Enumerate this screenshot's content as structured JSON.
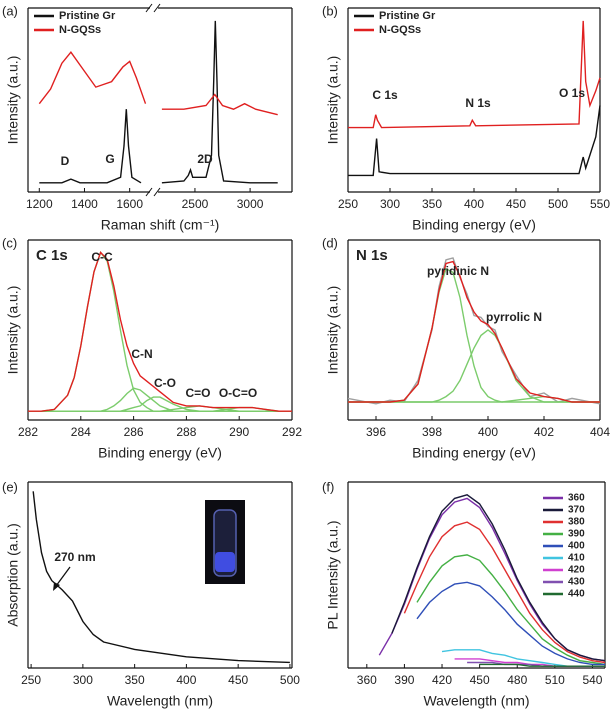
{
  "chart_data": [
    {
      "type": "line",
      "label": "(a)",
      "xlabel": "Raman shift (cm⁻¹)",
      "ylabel": "Intensity (a.u.)",
      "broken_axis": true,
      "xlim": [
        [
          1150,
          1690
        ],
        [
          2165,
          3380
        ]
      ],
      "xticks": [
        1200,
        1400,
        1600,
        2500,
        3000
      ],
      "ylim": [
        0,
        1
      ],
      "legend": "upper left",
      "annotations": [
        "D",
        "G",
        "2D"
      ],
      "series": [
        {
          "name": "Pristine Gr",
          "color": "#111111",
          "x": [
            1200,
            1300,
            1340,
            1380,
            1500,
            1560,
            1575,
            1585,
            1595,
            1610,
            1650,
            null,
            2200,
            2400,
            2440,
            2460,
            2480,
            2600,
            2650,
            2670,
            2685,
            2700,
            2715,
            2760,
            3000,
            3250
          ],
          "values": [
            0.05,
            0.05,
            0.07,
            0.05,
            0.05,
            0.08,
            0.25,
            0.45,
            0.25,
            0.08,
            0.05,
            null,
            0.05,
            0.06,
            0.09,
            0.12,
            0.08,
            0.08,
            0.2,
            0.6,
            0.93,
            0.6,
            0.2,
            0.06,
            0.05,
            0.05
          ]
        },
        {
          "name": "N-GQSs",
          "color": "#e02020",
          "x": [
            1200,
            1250,
            1300,
            1340,
            1380,
            1450,
            1520,
            1570,
            1600,
            1630,
            1670,
            null,
            2200,
            2400,
            2600,
            2680,
            2750,
            2850,
            2950,
            3050,
            3250
          ],
          "values": [
            0.48,
            0.56,
            0.7,
            0.76,
            0.69,
            0.57,
            0.6,
            0.68,
            0.71,
            0.62,
            0.48,
            null,
            0.45,
            0.45,
            0.47,
            0.53,
            0.47,
            0.45,
            0.48,
            0.45,
            0.42
          ]
        }
      ]
    },
    {
      "type": "line",
      "label": "(b)",
      "xlabel": "Binding energy (eV)",
      "ylabel": "Intensity (a.u.)",
      "xlim": [
        250,
        550
      ],
      "xticks": [
        250,
        300,
        350,
        400,
        450,
        500,
        550
      ],
      "ylim": [
        0,
        1
      ],
      "legend": "upper left",
      "annotations": [
        "C 1s",
        "N 1s",
        "O 1s"
      ],
      "series": [
        {
          "name": "Pristine Gr",
          "color": "#111111",
          "x": [
            250,
            280,
            284,
            287,
            300,
            525,
            530,
            533,
            545,
            550
          ],
          "values": [
            0.09,
            0.09,
            0.29,
            0.11,
            0.1,
            0.1,
            0.19,
            0.13,
            0.3,
            0.47
          ]
        },
        {
          "name": "N-GQSs",
          "color": "#e02020",
          "x": [
            250,
            280,
            283,
            285,
            290,
            395,
            398,
            402,
            525,
            530,
            533,
            538,
            545,
            550
          ],
          "values": [
            0.35,
            0.35,
            0.42,
            0.39,
            0.35,
            0.36,
            0.39,
            0.36,
            0.37,
            0.93,
            0.6,
            0.47,
            0.55,
            0.62
          ]
        }
      ]
    },
    {
      "type": "line",
      "label": "(c)",
      "title": "C 1s",
      "xlabel": "Binding energy (eV)",
      "ylabel": "Intensity (a.u.)",
      "xlim": [
        282,
        292
      ],
      "xticks": [
        282,
        284,
        286,
        288,
        290,
        292
      ],
      "ylim": [
        0,
        1.02
      ],
      "annotations": [
        "C-C",
        "C-N",
        "C-O",
        "C=O",
        "O-C=O"
      ],
      "x": [
        282,
        282.5,
        283,
        283.5,
        283.75,
        284,
        284.25,
        284.5,
        284.75,
        285,
        285.25,
        285.5,
        285.75,
        286,
        286.25,
        286.5,
        286.75,
        287,
        287.5,
        288,
        288.5,
        289,
        289.5,
        290,
        290.5,
        291,
        291.5,
        292
      ],
      "series": [
        {
          "color": "#7ccc6c",
          "values": [
            0.05,
            0.05,
            0.06,
            0.14,
            0.24,
            0.42,
            0.64,
            0.84,
            0.95,
            0.9,
            0.73,
            0.51,
            0.31,
            0.17,
            0.1,
            0.07,
            0.05,
            0.05,
            0.05,
            0.05,
            0.05,
            0.05,
            0.05,
            0.05,
            0.05,
            0.05,
            0.05,
            0.05
          ]
        },
        {
          "color": "#7ccc6c",
          "values": [
            0.05,
            0.05,
            0.05,
            0.05,
            0.05,
            0.05,
            0.05,
            0.05,
            0.05,
            0.06,
            0.08,
            0.11,
            0.15,
            0.18,
            0.17,
            0.14,
            0.11,
            0.08,
            0.05,
            0.05,
            0.05,
            0.05,
            0.05,
            0.05,
            0.05,
            0.05,
            0.05,
            0.05
          ]
        },
        {
          "color": "#7ccc6c",
          "values": [
            0.05,
            0.05,
            0.05,
            0.05,
            0.05,
            0.05,
            0.05,
            0.05,
            0.05,
            0.05,
            0.05,
            0.05,
            0.06,
            0.07,
            0.08,
            0.11,
            0.13,
            0.13,
            0.09,
            0.06,
            0.05,
            0.05,
            0.05,
            0.05,
            0.05,
            0.05,
            0.05,
            0.05
          ]
        },
        {
          "color": "#7ccc6c",
          "values": [
            0.05,
            0.05,
            0.05,
            0.05,
            0.05,
            0.05,
            0.05,
            0.05,
            0.05,
            0.05,
            0.05,
            0.05,
            0.05,
            0.05,
            0.05,
            0.05,
            0.05,
            0.05,
            0.06,
            0.07,
            0.08,
            0.07,
            0.06,
            0.05,
            0.05,
            0.05,
            0.05,
            0.05
          ]
        },
        {
          "color": "#7ccc6c",
          "values": [
            0.05,
            0.05,
            0.05,
            0.05,
            0.05,
            0.05,
            0.05,
            0.05,
            0.05,
            0.05,
            0.05,
            0.05,
            0.05,
            0.05,
            0.05,
            0.05,
            0.05,
            0.05,
            0.05,
            0.05,
            0.05,
            0.05,
            0.06,
            0.07,
            0.07,
            0.06,
            0.05,
            0.05
          ]
        },
        {
          "color": "#e02020",
          "values": [
            0.05,
            0.05,
            0.06,
            0.14,
            0.24,
            0.42,
            0.64,
            0.84,
            0.95,
            0.91,
            0.76,
            0.57,
            0.42,
            0.32,
            0.25,
            0.22,
            0.19,
            0.16,
            0.1,
            0.08,
            0.08,
            0.07,
            0.07,
            0.07,
            0.07,
            0.06,
            0.05,
            0.05
          ]
        }
      ]
    },
    {
      "type": "line",
      "label": "(d)",
      "title": "N 1s",
      "xlabel": "Binding energy (eV)",
      "ylabel": "Intensity (a.u.)",
      "xlim": [
        395,
        404
      ],
      "xticks": [
        396,
        398,
        400,
        402,
        404
      ],
      "ylim": [
        0,
        1
      ],
      "annotations": [
        "pyridinic N",
        "pyrrolic N"
      ],
      "x": [
        395,
        396,
        396.5,
        397,
        397.5,
        398,
        398.25,
        398.5,
        398.75,
        399,
        399.25,
        399.5,
        399.75,
        400,
        400.25,
        400.5,
        401,
        401.5,
        402,
        402.5,
        403,
        404
      ],
      "series": [
        {
          "color": "#a0a0a0",
          "values": [
            0.12,
            0.09,
            0.11,
            0.1,
            0.22,
            0.5,
            0.74,
            0.89,
            0.9,
            0.79,
            0.7,
            0.58,
            0.57,
            0.52,
            0.5,
            0.38,
            0.25,
            0.13,
            0.15,
            0.1,
            0.12,
            0.09
          ]
        },
        {
          "color": "#7ccc6c",
          "values": [
            0.1,
            0.1,
            0.1,
            0.11,
            0.2,
            0.51,
            0.71,
            0.84,
            0.82,
            0.68,
            0.47,
            0.3,
            0.18,
            0.13,
            0.11,
            0.1,
            0.1,
            0.1,
            0.1,
            0.1,
            0.1,
            0.1
          ]
        },
        {
          "color": "#7ccc6c",
          "values": [
            0.1,
            0.1,
            0.1,
            0.1,
            0.1,
            0.1,
            0.11,
            0.13,
            0.16,
            0.22,
            0.31,
            0.4,
            0.47,
            0.5,
            0.47,
            0.4,
            0.22,
            0.13,
            0.1,
            0.1,
            0.1,
            0.1
          ]
        },
        {
          "color": "#7ccc6c",
          "values": [
            0.1,
            0.1,
            0.1,
            0.1,
            0.1,
            0.1,
            0.1,
            0.1,
            0.1,
            0.1,
            0.1,
            0.1,
            0.1,
            0.1,
            0.1,
            0.1,
            0.11,
            0.12,
            0.13,
            0.12,
            0.1,
            0.1
          ]
        },
        {
          "color": "#e02020",
          "values": [
            0.1,
            0.1,
            0.1,
            0.11,
            0.2,
            0.51,
            0.72,
            0.87,
            0.88,
            0.8,
            0.68,
            0.6,
            0.55,
            0.53,
            0.48,
            0.4,
            0.23,
            0.15,
            0.13,
            0.12,
            0.1,
            0.1
          ]
        }
      ]
    },
    {
      "type": "line",
      "label": "(e)",
      "xlabel": "Wavelength (nm)",
      "ylabel": "Absorption (a.u.)",
      "xlim": [
        247,
        502
      ],
      "xticks": [
        250,
        300,
        350,
        400,
        450,
        500
      ],
      "ylim": [
        0,
        1
      ],
      "annotations": [
        "270 nm"
      ],
      "x": [
        252,
        255,
        260,
        265,
        270,
        280,
        290,
        300,
        310,
        320,
        350,
        400,
        450,
        500
      ],
      "series": [
        {
          "color": "#111111",
          "values": [
            0.95,
            0.8,
            0.62,
            0.52,
            0.47,
            0.42,
            0.36,
            0.25,
            0.18,
            0.14,
            0.1,
            0.06,
            0.04,
            0.03
          ]
        }
      ]
    },
    {
      "type": "line",
      "label": "(f)",
      "xlabel": "Wavelength (nm)",
      "ylabel": "PL Intensity (a.u.)",
      "xlim": [
        345,
        550
      ],
      "xticks": [
        360,
        390,
        420,
        450,
        480,
        510,
        540
      ],
      "ylim": [
        0,
        1.02
      ],
      "legend": "upper right",
      "x": [
        370,
        380,
        390,
        400,
        410,
        420,
        430,
        440,
        450,
        460,
        470,
        480,
        490,
        500,
        510,
        520,
        530,
        540,
        550
      ],
      "series": [
        {
          "name": "360",
          "color": "#7a2fa8",
          "values": [
            0.07,
            0.19,
            0.35,
            0.54,
            0.71,
            0.84,
            0.91,
            0.93,
            0.88,
            0.77,
            0.63,
            0.48,
            0.35,
            0.24,
            0.16,
            0.1,
            0.07,
            0.05,
            0.04
          ]
        },
        {
          "name": "370",
          "color": "#1a1a3a",
          "values": [
            null,
            0.19,
            0.36,
            0.55,
            0.72,
            0.86,
            0.93,
            0.95,
            0.9,
            0.79,
            0.65,
            0.49,
            0.36,
            0.25,
            0.16,
            0.1,
            0.07,
            0.05,
            0.04
          ]
        },
        {
          "name": "380",
          "color": "#e03030",
          "values": [
            null,
            null,
            0.3,
            0.46,
            0.61,
            0.72,
            0.78,
            0.8,
            0.76,
            0.66,
            0.54,
            0.42,
            0.3,
            0.21,
            0.14,
            0.09,
            0.06,
            0.04,
            0.03
          ]
        },
        {
          "name": "390",
          "color": "#44b044",
          "values": [
            null,
            null,
            null,
            0.36,
            0.47,
            0.56,
            0.61,
            0.62,
            0.59,
            0.51,
            0.42,
            0.32,
            0.24,
            0.16,
            0.11,
            0.07,
            0.04,
            0.03,
            0.02
          ]
        },
        {
          "name": "400",
          "color": "#2f4fb8",
          "values": [
            null,
            null,
            null,
            0.27,
            0.36,
            0.42,
            0.46,
            0.47,
            0.45,
            0.39,
            0.32,
            0.24,
            0.18,
            0.12,
            0.08,
            0.05,
            0.03,
            0.02,
            0.02
          ]
        },
        {
          "name": "410",
          "color": "#40c4e0",
          "values": [
            null,
            null,
            null,
            null,
            null,
            0.09,
            0.1,
            0.1,
            0.1,
            0.08,
            0.07,
            0.05,
            0.04,
            0.03,
            0.02,
            0.01,
            0.01,
            0.01,
            0.01
          ]
        },
        {
          "name": "420",
          "color": "#d040d0",
          "values": [
            null,
            null,
            null,
            null,
            null,
            null,
            0.05,
            0.05,
            0.05,
            0.04,
            0.03,
            0.03,
            0.02,
            0.02,
            0.01,
            0.01,
            0.01,
            0.01,
            0.01
          ]
        },
        {
          "name": "430",
          "color": "#8050b0",
          "values": [
            null,
            null,
            null,
            null,
            null,
            null,
            null,
            0.03,
            0.03,
            0.03,
            0.02,
            0.02,
            0.02,
            0.01,
            0.01,
            0.01,
            0.01,
            0.01,
            0.01
          ]
        },
        {
          "name": "440",
          "color": "#206a30",
          "values": [
            null,
            null,
            null,
            null,
            null,
            null,
            null,
            null,
            0.02,
            0.02,
            0.02,
            0.02,
            0.01,
            0.01,
            0.01,
            0.01,
            0.01,
            0.01,
            0.01
          ]
        }
      ]
    }
  ]
}
